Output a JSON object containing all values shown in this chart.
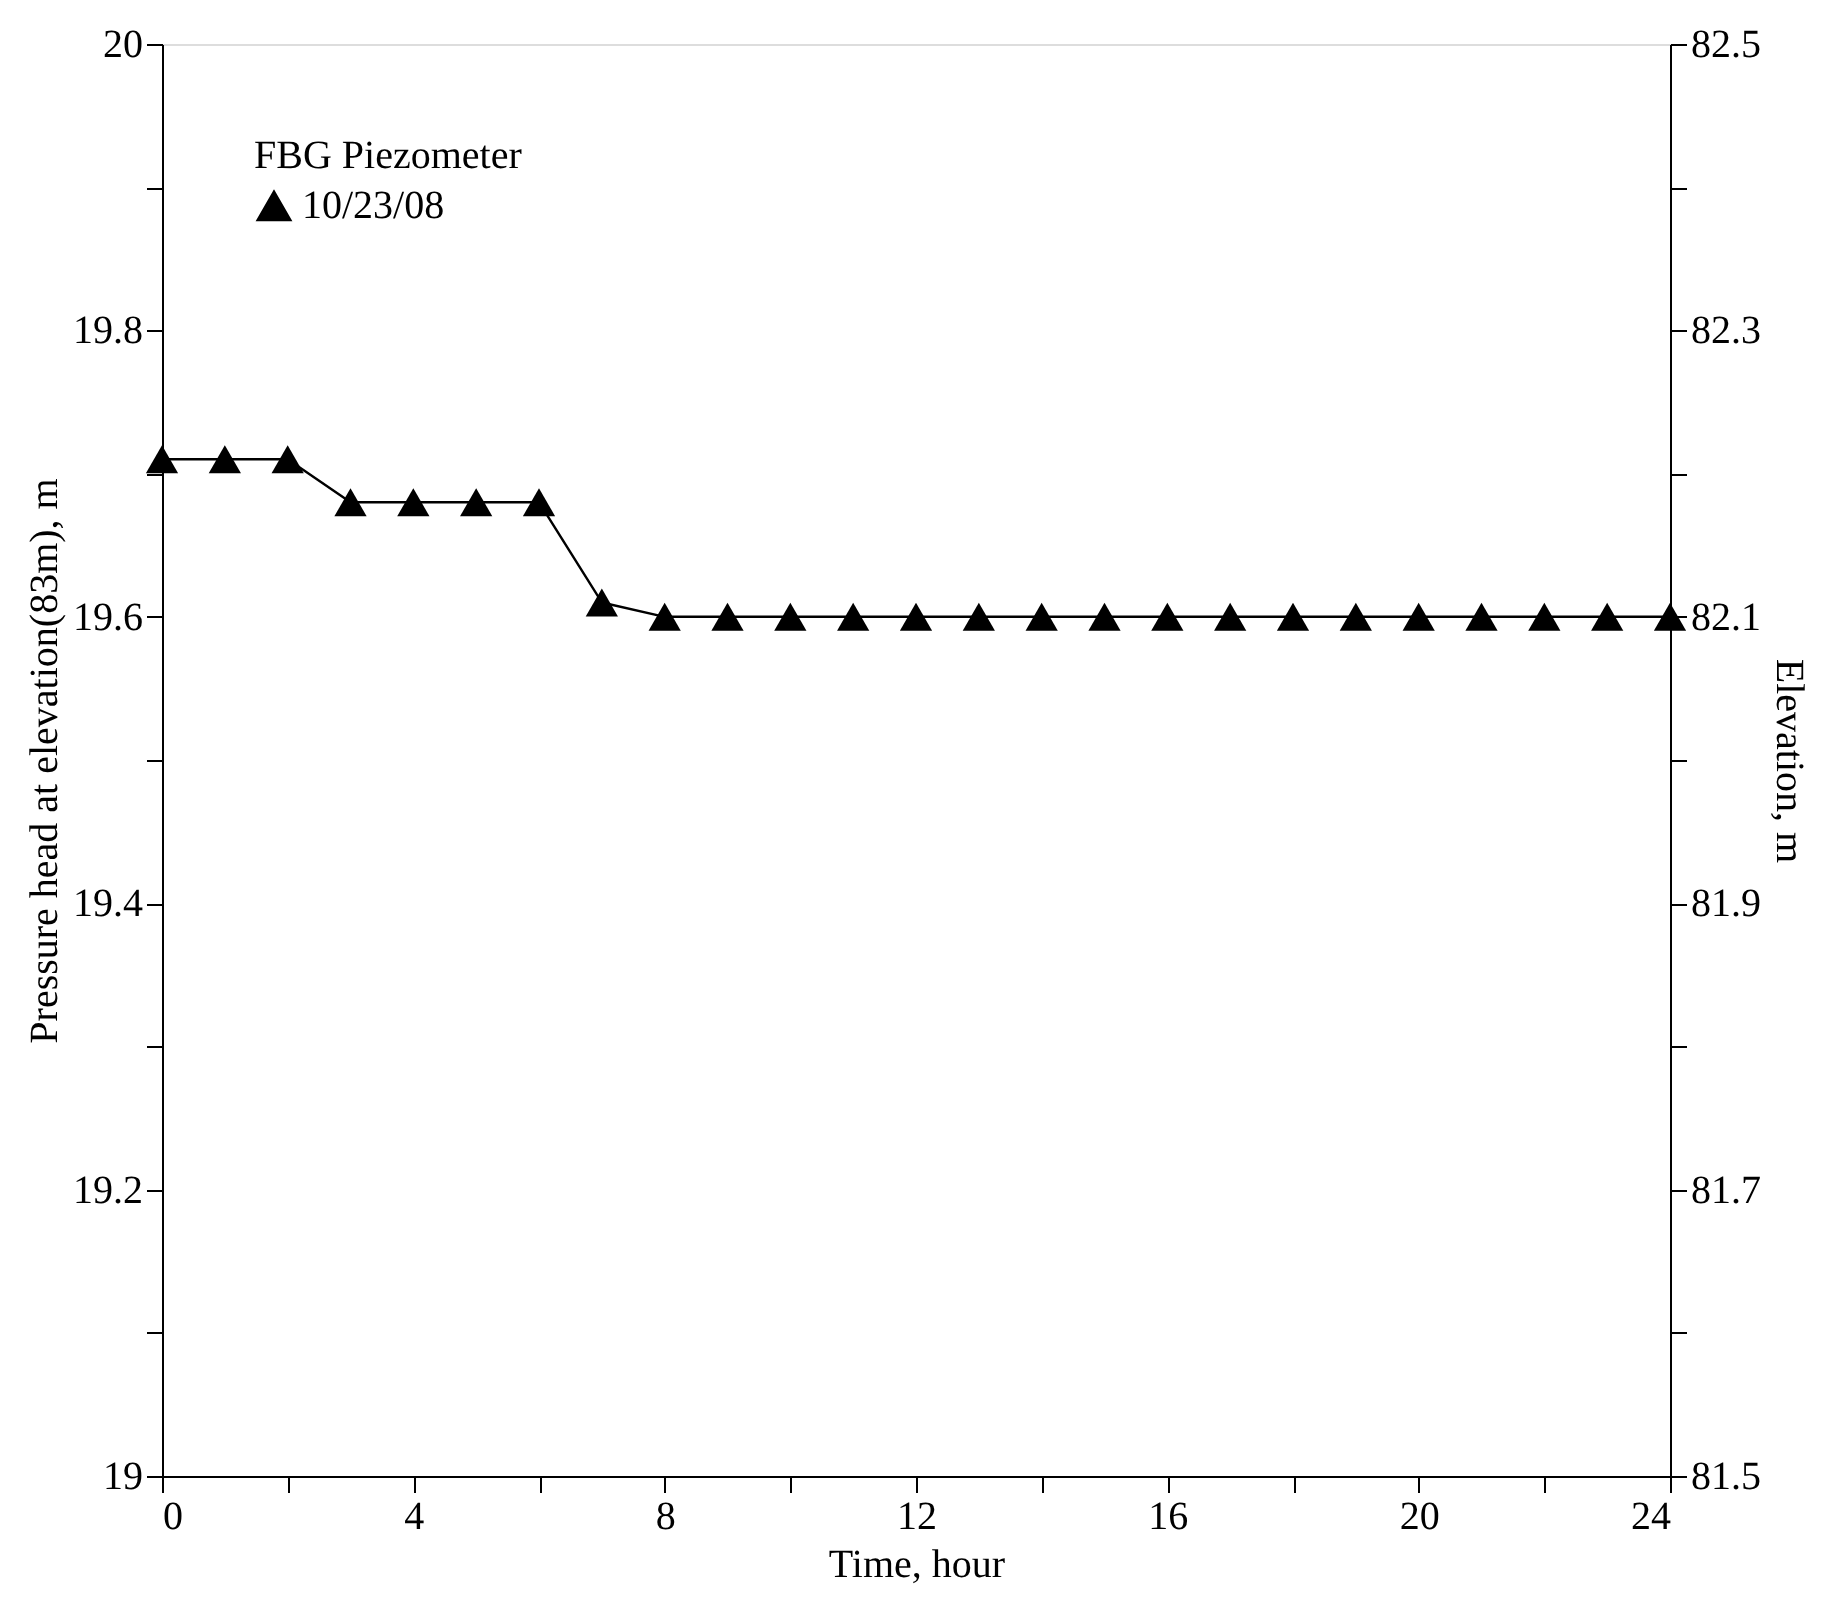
{
  "chart_data": {
    "type": "line",
    "xlabel": "Time, hour",
    "ylabel": "Pressure head at elevation(83m), m",
    "y2label": "Elevation, m",
    "legend_title": "FBG Piezometer",
    "x": [
      0,
      1,
      2,
      3,
      4,
      5,
      6,
      7,
      8,
      9,
      10,
      11,
      12,
      13,
      14,
      15,
      16,
      17,
      18,
      19,
      20,
      21,
      22,
      23,
      24
    ],
    "series": [
      {
        "name": "10/23/08",
        "color": "#000000",
        "values": [
          19.71,
          19.71,
          19.71,
          19.68,
          19.68,
          19.68,
          19.68,
          19.61,
          19.6,
          19.6,
          19.6,
          19.6,
          19.6,
          19.6,
          19.6,
          19.6,
          19.6,
          19.6,
          19.6,
          19.6,
          19.6,
          19.6,
          19.6,
          19.6,
          19.6
        ]
      }
    ],
    "xlim": [
      0,
      24
    ],
    "xticks": [
      0,
      {
        "value": 2,
        "label": null
      },
      4,
      {
        "value": 6,
        "label": null
      },
      8,
      {
        "value": 10,
        "label": null
      },
      12,
      {
        "value": 14,
        "label": null
      },
      16,
      {
        "value": 18,
        "label": null
      },
      20,
      {
        "value": 22,
        "label": null
      },
      24
    ],
    "ylim": [
      19,
      20
    ],
    "yticks": [
      19,
      {
        "value": 19.1,
        "label": null
      },
      19.2,
      {
        "value": 19.3,
        "label": null
      },
      19.4,
      {
        "value": 19.5,
        "label": null
      },
      19.6,
      {
        "value": 19.7,
        "label": null
      },
      19.8,
      {
        "value": 19.9,
        "label": null
      },
      20
    ],
    "y2lim": [
      81.5,
      82.5
    ],
    "y2ticks": [
      81.5,
      {
        "value": 81.6,
        "label": null
      },
      81.7,
      {
        "value": 81.8,
        "label": null
      },
      81.9,
      {
        "value": 82.0,
        "label": null
      },
      82.1,
      {
        "value": 82.2,
        "label": null
      },
      82.3,
      {
        "value": 82.4,
        "label": null
      },
      82.5
    ],
    "grid": false,
    "legend": "top left",
    "marker": "triangle",
    "line_style": "solid"
  }
}
